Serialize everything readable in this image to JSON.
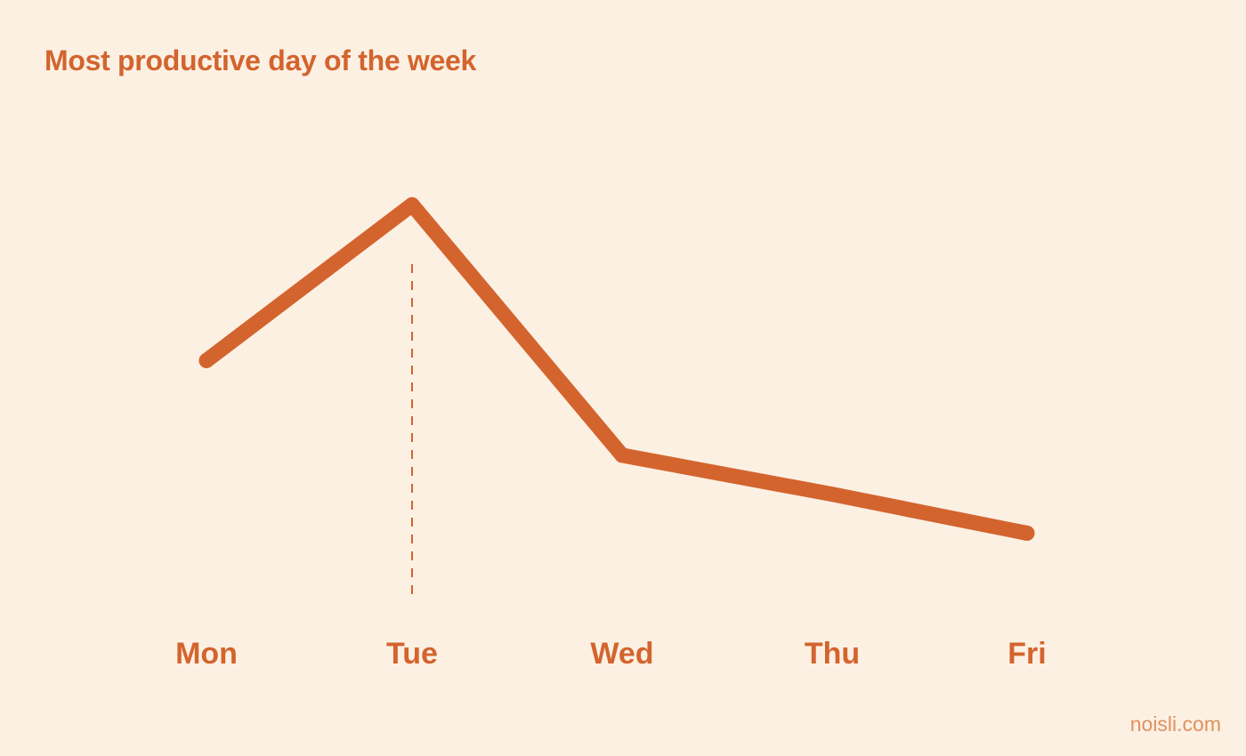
{
  "chart_data": {
    "type": "line",
    "title": "Most productive day of the week",
    "categories": [
      "Mon",
      "Tue",
      "Wed",
      "Thu",
      "Fri"
    ],
    "series": [
      {
        "values": [
          56,
          84,
          39,
          32,
          25
        ]
      }
    ],
    "ylim": [
      0,
      100
    ],
    "highlight": {
      "category": "Tue",
      "style": "dashed-vertical"
    },
    "grid": false,
    "y_axis_visible": false,
    "legend": "none",
    "line_color": "#D3642E",
    "label_color": "#D3642E"
  },
  "footer": {
    "brand": "noisli.com"
  },
  "colors": {
    "background": "#FCF0E3",
    "accent": "#D3642E",
    "brand": "#E0915F"
  }
}
